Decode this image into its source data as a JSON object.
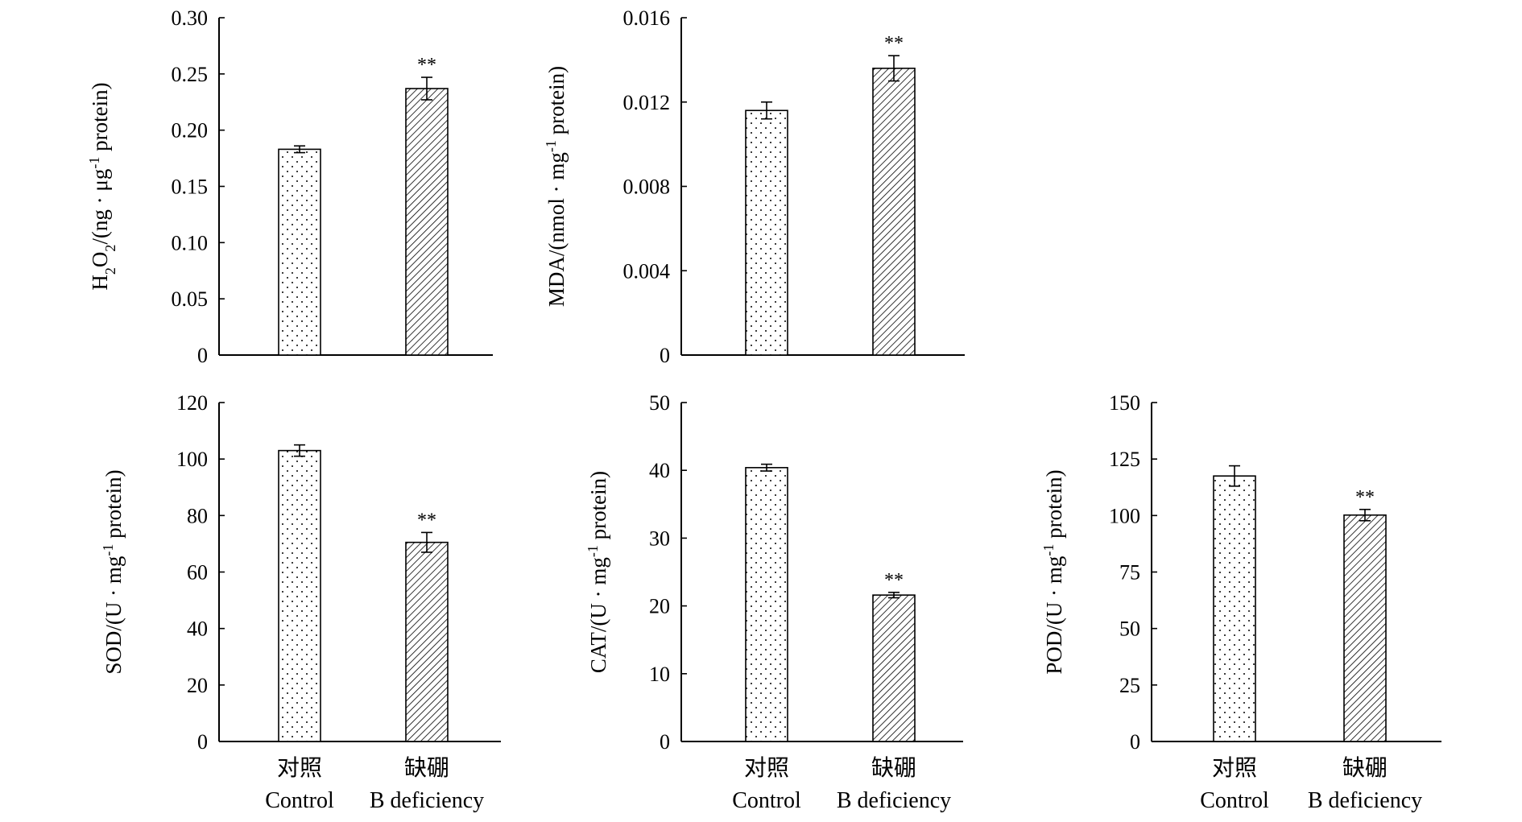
{
  "chart_data": [
    {
      "type": "bar",
      "panel": "h2o2",
      "categories": [
        "Control",
        "B deficiency"
      ],
      "values": [
        0.183,
        0.237
      ],
      "errors": [
        0.003,
        0.01
      ],
      "significance": [
        "",
        "**"
      ],
      "ylabel": {
        "main": "H",
        "sub1": "2",
        "mid": "O",
        "sub2": "2",
        "rest": "/(ng · μg",
        "sup": "-1",
        "tail": " protein)"
      },
      "ylim": [
        0,
        0.3
      ],
      "yticks": [
        "0",
        "0.05",
        "0.10",
        "0.15",
        "0.20",
        "0.25",
        "0.30"
      ],
      "ytick_values": [
        0,
        0.05,
        0.1,
        0.15,
        0.2,
        0.25,
        0.3
      ]
    },
    {
      "type": "bar",
      "panel": "mda",
      "categories": [
        "Control",
        "B deficiency"
      ],
      "values": [
        0.0116,
        0.0136
      ],
      "errors": [
        0.0004,
        0.0006
      ],
      "significance": [
        "",
        "**"
      ],
      "ylabel": {
        "main": "MDA/(nmol · mg",
        "sup": "-1",
        "tail": " protein)"
      },
      "ylim": [
        0,
        0.016
      ],
      "yticks": [
        "0",
        "0.004",
        "0.008",
        "0.012",
        "0.016"
      ],
      "ytick_values": [
        0,
        0.004,
        0.008,
        0.012,
        0.016
      ]
    },
    {
      "type": "bar",
      "panel": "sod",
      "categories": [
        "Control",
        "B deficiency"
      ],
      "values": [
        103,
        70.5
      ],
      "errors": [
        2,
        3.5
      ],
      "significance": [
        "",
        "**"
      ],
      "ylabel": {
        "main": "SOD/(U · mg",
        "sup": "-1",
        "tail": " protein)"
      },
      "ylim": [
        0,
        120
      ],
      "yticks": [
        "0",
        "20",
        "40",
        "60",
        "80",
        "100",
        "120"
      ],
      "ytick_values": [
        0,
        20,
        40,
        60,
        80,
        100,
        120
      ]
    },
    {
      "type": "bar",
      "panel": "cat",
      "categories": [
        "Control",
        "B deficiency"
      ],
      "values": [
        40.4,
        21.6
      ],
      "errors": [
        0.5,
        0.4
      ],
      "significance": [
        "",
        "**"
      ],
      "ylabel": {
        "main": "CAT/(U · mg",
        "sup": "-1",
        "tail": " protein)"
      },
      "ylim": [
        0,
        50
      ],
      "yticks": [
        "0",
        "10",
        "20",
        "30",
        "40",
        "50"
      ],
      "ytick_values": [
        0,
        10,
        20,
        30,
        40,
        50
      ]
    },
    {
      "type": "bar",
      "panel": "pod",
      "categories": [
        "Control",
        "B deficiency"
      ],
      "values": [
        117.5,
        100.2
      ],
      "errors": [
        4.5,
        2.5
      ],
      "significance": [
        "",
        "**"
      ],
      "ylabel": {
        "main": "POD/(U · mg",
        "sup": "-1",
        "tail": " protein)"
      },
      "ylim": [
        0,
        150
      ],
      "yticks": [
        "0",
        "25",
        "50",
        "75",
        "100",
        "125",
        "150"
      ],
      "ytick_values": [
        0,
        25,
        50,
        75,
        100,
        125,
        150
      ]
    }
  ],
  "x_labels": [
    {
      "cn": "对照",
      "en": "Control"
    },
    {
      "cn": "缺硼",
      "en": "B  deficiency"
    }
  ],
  "colors": {
    "bar_fill": "#ffffff",
    "bar_stroke": "#000000",
    "pattern_ink": "#000000"
  }
}
